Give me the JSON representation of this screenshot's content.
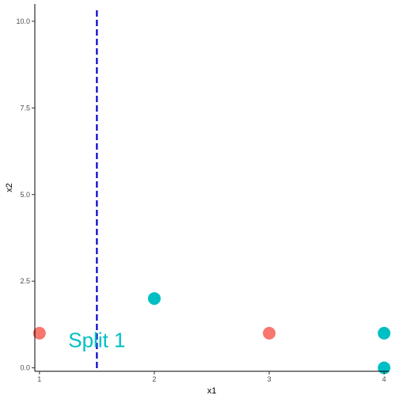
{
  "chart_data": {
    "type": "scatter",
    "xlabel": "x1",
    "ylabel": "x2",
    "xlim": [
      0.96,
      4.04
    ],
    "ylim": [
      -0.1,
      10.5
    ],
    "x_ticks": [
      1,
      2,
      3,
      4
    ],
    "x_tick_labels": [
      "1",
      "2",
      "3",
      "4"
    ],
    "y_ticks": [
      0,
      2.5,
      5,
      7.5,
      10
    ],
    "y_tick_labels": [
      "0.0",
      "2.5",
      "5.0",
      "7.5",
      "10.0"
    ],
    "grid": false,
    "legend": "none",
    "points": [
      {
        "x": 1,
        "y": 1,
        "class": "red"
      },
      {
        "x": 2,
        "y": 2,
        "class": "cyan"
      },
      {
        "x": 3,
        "y": 1,
        "class": "red"
      },
      {
        "x": 4,
        "y": 1,
        "class": "cyan"
      },
      {
        "x": 4,
        "y": 0,
        "class": "cyan"
      }
    ],
    "class_colors": {
      "red": "#F8766D",
      "cyan": "#00BFC4"
    },
    "split_line": {
      "x": 1.5,
      "color": "#0000CD",
      "style": "dashed"
    },
    "annotation": {
      "text": "Split 1",
      "x": 1.5,
      "y": 0.75,
      "color": "#00BFC4"
    }
  }
}
